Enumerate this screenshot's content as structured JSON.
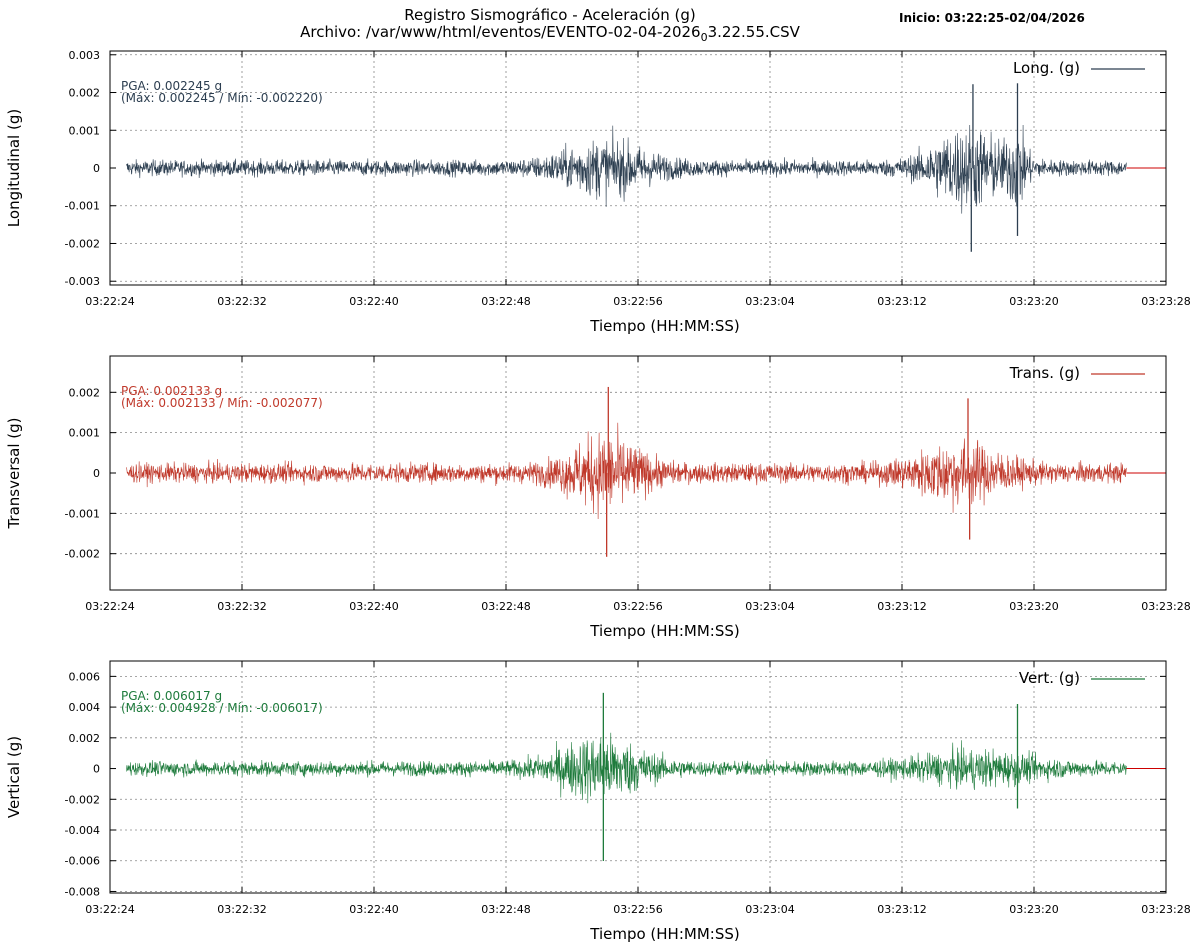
{
  "header": {
    "title_line1": "Registro Sismográfico - Aceleración (g)",
    "title_line2_prefix": "Archivo: /var/www/html/eventos/EVENTO-02-04-2026",
    "title_line2_sub": "0",
    "title_line2_suffix": "3.22.55.CSV",
    "start_label": "Inicio: 03:22:25-02/04/2026"
  },
  "chart_data": [
    {
      "type": "line",
      "name": "longitudinal",
      "legend": "Long. (g)",
      "color": "#2c3e50",
      "ylabel": "Longitudinal (g)",
      "xlabel": "Tiempo (HH:MM:SS)",
      "x_ticks": [
        "03:22:24",
        "03:22:32",
        "03:22:40",
        "03:22:48",
        "03:22:56",
        "03:23:04",
        "03:23:12",
        "03:23:20",
        "03:23:28"
      ],
      "x_range_seconds": [
        0,
        64
      ],
      "data_span_seconds": [
        1,
        61.6
      ],
      "y_ticks": [
        0.003,
        0.002,
        0.001,
        0,
        -0.001,
        -0.002,
        -0.003
      ],
      "y_tick_labels": [
        "0.003",
        "0.002",
        "0.001",
        "0",
        "-0.001",
        "-0.002",
        "-0.003"
      ],
      "ylim": [
        -0.0031,
        0.0031
      ],
      "pga_label": "PGA: 0.002245 g",
      "max_min_label": "(Máx: 0.002245 / Mín: -0.002220)",
      "pga": 0.002245,
      "max": 0.002245,
      "min": -0.00222,
      "baseline_amplitude": 0.00035,
      "bursts": [
        {
          "center_s": 30.0,
          "width_s": 3.0,
          "amplitude": 0.001
        },
        {
          "center_s": 52.0,
          "width_s": 2.5,
          "amplitude": 0.0016
        },
        {
          "center_s": 55.0,
          "width_s": 0.6,
          "amplitude": 0.0012
        }
      ],
      "peaks": [
        {
          "t_s": 52.3,
          "value": 0.00222
        },
        {
          "t_s": 52.2,
          "value": -0.00222
        },
        {
          "t_s": 55.0,
          "value": 0.002245
        },
        {
          "t_s": 55.0,
          "value": -0.0018
        }
      ],
      "grid": true,
      "legend_position": "top-right"
    },
    {
      "type": "line",
      "name": "transversal",
      "legend": "Trans. (g)",
      "color": "#c0392b",
      "ylabel": "Transversal (g)",
      "xlabel": "Tiempo (HH:MM:SS)",
      "x_ticks": [
        "03:22:24",
        "03:22:32",
        "03:22:40",
        "03:22:48",
        "03:22:56",
        "03:23:04",
        "03:23:12",
        "03:23:20",
        "03:23:28"
      ],
      "x_range_seconds": [
        0,
        64
      ],
      "data_span_seconds": [
        1,
        61.6
      ],
      "y_ticks": [
        0.002,
        0.001,
        0,
        -0.001,
        -0.002
      ],
      "y_tick_labels": [
        "0.002",
        "0.001",
        "0",
        "-0.001",
        "-0.002"
      ],
      "ylim": [
        -0.0029,
        0.0029
      ],
      "pga_label": "PGA: 0.002133 g",
      "max_min_label": "(Máx: 0.002133 / Mín: -0.002077)",
      "pga": 0.002133,
      "max": 0.002133,
      "min": -0.002077,
      "baseline_amplitude": 0.0004,
      "bursts": [
        {
          "center_s": 30.0,
          "width_s": 2.5,
          "amplitude": 0.0013
        },
        {
          "center_s": 51.5,
          "width_s": 3.0,
          "amplitude": 0.001
        }
      ],
      "peaks": [
        {
          "t_s": 30.2,
          "value": 0.002133
        },
        {
          "t_s": 30.1,
          "value": -0.002077
        },
        {
          "t_s": 52.0,
          "value": 0.00185
        },
        {
          "t_s": 52.1,
          "value": -0.00165
        }
      ],
      "grid": true,
      "legend_position": "top-right"
    },
    {
      "type": "line",
      "name": "vertical",
      "legend": "Vert. (g)",
      "color": "#1e7b3c",
      "ylabel": "Vertical (g)",
      "xlabel": "Tiempo (HH:MM:SS)",
      "x_ticks": [
        "03:22:24",
        "03:22:32",
        "03:22:40",
        "03:22:48",
        "03:22:56",
        "03:23:04",
        "03:23:12",
        "03:23:20",
        "03:23:28"
      ],
      "x_range_seconds": [
        0,
        64
      ],
      "data_span_seconds": [
        1,
        61.6
      ],
      "y_ticks": [
        0.006,
        0.004,
        0.002,
        0,
        -0.002,
        -0.004,
        -0.006,
        -0.008
      ],
      "y_tick_labels": [
        "0.006",
        "0.004",
        "0.002",
        "0",
        "-0.002",
        "-0.004",
        "-0.006",
        "-0.008"
      ],
      "ylim": [
        -0.0081,
        0.007
      ],
      "pga_label": "PGA: 0.006017 g",
      "max_min_label": "(Máx: 0.004928 / Mín: -0.006017)",
      "pga": 0.006017,
      "max": 0.004928,
      "min": -0.006017,
      "baseline_amplitude": 0.0008,
      "bursts": [
        {
          "center_s": 29.7,
          "width_s": 3.0,
          "amplitude": 0.003
        },
        {
          "center_s": 52.5,
          "width_s": 4.0,
          "amplitude": 0.0014
        }
      ],
      "peaks": [
        {
          "t_s": 29.9,
          "value": 0.004928
        },
        {
          "t_s": 29.9,
          "value": -0.006017
        },
        {
          "t_s": 55.0,
          "value": 0.0042
        },
        {
          "t_s": 55.0,
          "value": -0.0026
        }
      ],
      "grid": true,
      "legend_position": "top-right"
    }
  ]
}
